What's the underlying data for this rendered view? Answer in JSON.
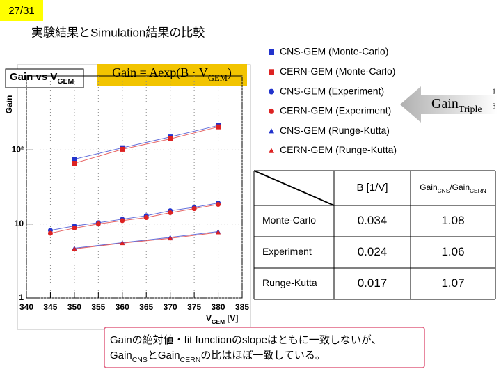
{
  "page_number": "27/31",
  "title": "実験結果とSimulation結果の比較",
  "plot_box_title": [
    {
      "text": "Gain vs V"
    },
    {
      "sub": "GEM"
    }
  ],
  "formula": [
    {
      "text": "Gain = Aexp(B · V"
    },
    {
      "sub": "GEM"
    },
    {
      "text": ")"
    }
  ],
  "arrow_label": [
    {
      "text": "Gain"
    },
    {
      "sub": "Triple"
    }
  ],
  "arrow_exponent": [
    "1",
    "3"
  ],
  "chart_data": {
    "type": "scatter",
    "ylabel": "Gain",
    "xlabel": [
      {
        "text": "V"
      },
      {
        "sub": "GEM"
      },
      {
        "text": " [V]"
      }
    ],
    "xlim": [
      340,
      385
    ],
    "xticks": [
      340,
      345,
      350,
      355,
      360,
      365,
      370,
      375,
      380,
      385
    ],
    "ylim": [
      1,
      1000
    ],
    "log_y": true,
    "yticks": [
      1,
      10,
      {
        "value": 100,
        "label": "10²"
      }
    ],
    "grid": true,
    "series": [
      {
        "name": "CNS-GEM (Monte-Carlo)",
        "color": "#2233cc",
        "marker": "square",
        "x": [
          350,
          360,
          370,
          380
        ],
        "values": [
          75,
          107,
          150,
          214
        ]
      },
      {
        "name": "CERN-GEM (Monte-Carlo)",
        "color": "#dd2222",
        "marker": "square",
        "x": [
          350,
          360,
          370,
          380
        ],
        "values": [
          66,
          102,
          141,
          205
        ]
      },
      {
        "name": "CNS-GEM (Experiment)",
        "color": "#2233cc",
        "marker": "circle",
        "x": [
          345,
          350,
          355,
          360,
          365,
          370,
          375,
          380
        ],
        "values": [
          8.2,
          9.4,
          10.4,
          11.6,
          12.9,
          15.1,
          16.8,
          19.2
        ]
      },
      {
        "name": "CERN-GEM (Experiment)",
        "color": "#dd2222",
        "marker": "circle",
        "x": [
          345,
          350,
          355,
          360,
          365,
          370,
          375,
          380
        ],
        "values": [
          7.5,
          8.8,
          10,
          11.1,
          12.2,
          14.2,
          16.1,
          18.4
        ]
      },
      {
        "name": "CNS-GEM (Runge-Kutta)",
        "color": "#2233cc",
        "marker": "triangle",
        "x": [
          350,
          360,
          370,
          380
        ],
        "values": [
          4.7,
          5.6,
          6.6,
          7.9
        ]
      },
      {
        "name": "CERN-GEM (Runge-Kutta)",
        "color": "#dd2222",
        "marker": "triangle",
        "x": [
          350,
          360,
          370,
          380
        ],
        "values": [
          4.6,
          5.5,
          6.4,
          7.7
        ]
      }
    ]
  },
  "table": {
    "header": [
      "B [1/V]",
      [
        {
          "text": "Gain"
        },
        {
          "sub": "CNS"
        },
        {
          "text": "/Gain"
        },
        {
          "sub": "CERN"
        }
      ]
    ],
    "rows": [
      [
        "Monte-Carlo",
        "0.034",
        "1.08"
      ],
      [
        "Experiment",
        "0.024",
        "1.06"
      ],
      [
        "Runge-Kutta",
        "0.017",
        "1.07"
      ]
    ]
  },
  "note": [
    [
      {
        "text": "Gainの絶対値・fit functionのslopeはともに一致しないが、"
      }
    ],
    [
      {
        "text": "Gain"
      },
      {
        "sub": "CNS"
      },
      {
        "text": "とGain"
      },
      {
        "sub": "CERN"
      },
      {
        "text": "の比はほぼ一致している。"
      }
    ]
  ]
}
